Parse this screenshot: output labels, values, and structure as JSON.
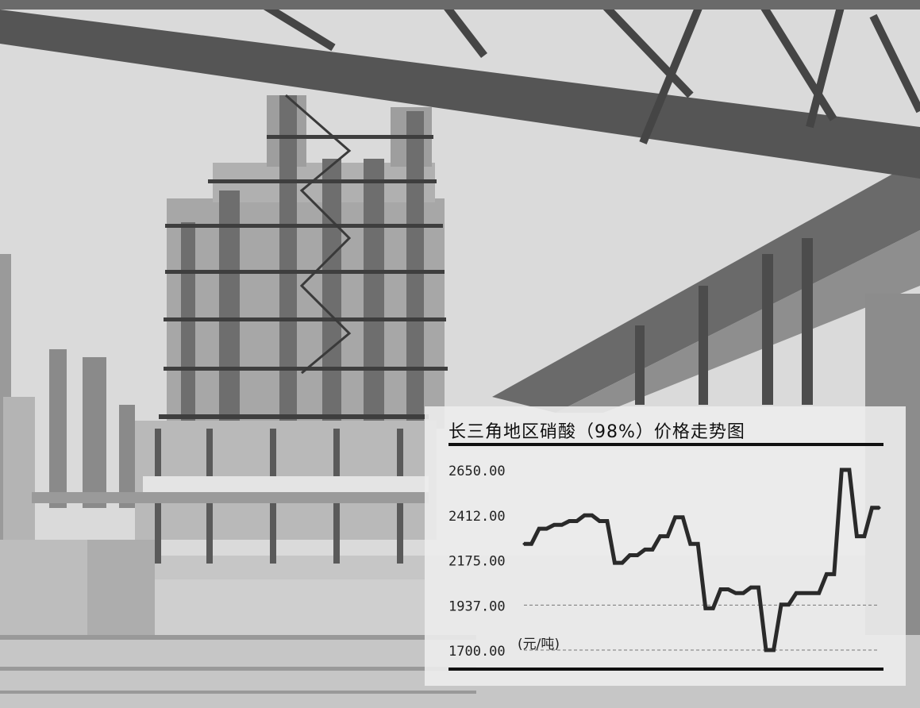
{
  "chart_data": {
    "type": "line",
    "title": "长三角地区硝酸（98%）价格走势图",
    "unit_label": "(元/吨)",
    "ylim": [
      1700,
      2650
    ],
    "yticks": [
      "2650.00",
      "2412.00",
      "2175.00",
      "1937.00",
      "1700.00"
    ],
    "ytick_values": [
      2650,
      2412,
      2175,
      1937,
      1700
    ],
    "grid": "dashed horizontal at 1937 and 1700",
    "series": [
      {
        "values": [
          2260,
          2260,
          2340,
          2340,
          2360,
          2360,
          2380,
          2380,
          2410,
          2410,
          2380,
          2380,
          2160,
          2160,
          2200,
          2200,
          2230,
          2230,
          2300,
          2300,
          2400,
          2400,
          2260,
          2260,
          1920,
          1920,
          2020,
          2020,
          2000,
          2000,
          2030,
          2030,
          1700,
          1700,
          1940,
          1940,
          2000,
          2000,
          2000,
          2000,
          2100,
          2100,
          2650,
          2650,
          2300,
          2300,
          2450,
          2450
        ]
      }
    ],
    "color": "#2a2a2a"
  }
}
